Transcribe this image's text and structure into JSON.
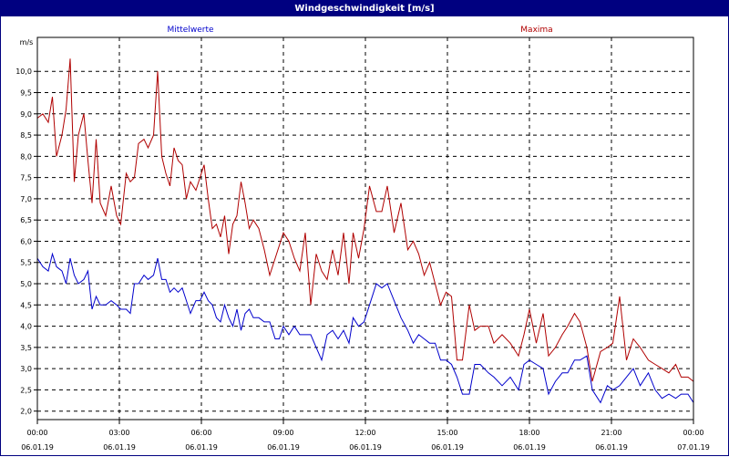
{
  "window": {
    "title": "Windgeschwindigkeit [m/s]"
  },
  "colors": {
    "mean": "#0000cc",
    "max": "#b00000",
    "grid": "#000000",
    "titlebar": "#000080"
  },
  "chart_data": {
    "type": "line",
    "ylabel": "m/s",
    "ylim": [
      1.8,
      10.8
    ],
    "y_ticks": [
      "2,0",
      "2,5",
      "3,0",
      "3,5",
      "4,0",
      "4,5",
      "5,0",
      "5,5",
      "6,0",
      "6,5",
      "7,0",
      "7,5",
      "8,0",
      "8,5",
      "9,0",
      "9,5",
      "10,0"
    ],
    "y_tick_values": [
      2.0,
      2.5,
      3.0,
      3.5,
      4.0,
      4.5,
      5.0,
      5.5,
      6.0,
      6.5,
      7.0,
      7.5,
      8.0,
      8.5,
      9.0,
      9.5,
      10.0
    ],
    "x_ticks": [
      {
        "time": "00:00",
        "date": "06.01.19"
      },
      {
        "time": "03:00",
        "date": "06.01.19"
      },
      {
        "time": "06:00",
        "date": "06.01.19"
      },
      {
        "time": "09:00",
        "date": "06.01.19"
      },
      {
        "time": "12:00",
        "date": "06.01.19"
      },
      {
        "time": "15:00",
        "date": "06.01.19"
      },
      {
        "time": "18:00",
        "date": "06.01.19"
      },
      {
        "time": "21:00",
        "date": "06.01.19"
      },
      {
        "time": "00:00",
        "date": "07.01.19"
      }
    ],
    "x_tick_hours": [
      0,
      3,
      6,
      9,
      12,
      15,
      18,
      21,
      24
    ],
    "grid": true,
    "series": [
      {
        "name": "Mittelwerte",
        "x": [
          0,
          0.2,
          0.4,
          0.55,
          0.7,
          0.9,
          1.05,
          1.2,
          1.35,
          1.5,
          1.7,
          1.85,
          2.0,
          2.15,
          2.3,
          2.5,
          2.7,
          2.9,
          3.05,
          3.25,
          3.4,
          3.55,
          3.7,
          3.9,
          4.05,
          4.25,
          4.4,
          4.55,
          4.7,
          4.85,
          5.0,
          5.15,
          5.3,
          5.45,
          5.6,
          5.8,
          5.95,
          6.1,
          6.25,
          6.4,
          6.55,
          6.7,
          6.85,
          7.0,
          7.15,
          7.3,
          7.45,
          7.6,
          7.75,
          7.9,
          8.1,
          8.3,
          8.5,
          8.7,
          8.85,
          9.0,
          9.2,
          9.4,
          9.6,
          9.8,
          10.0,
          10.2,
          10.4,
          10.6,
          10.8,
          11.0,
          11.2,
          11.4,
          11.55,
          11.75,
          11.95,
          12.15,
          12.4,
          12.6,
          12.8,
          13.05,
          13.3,
          13.55,
          13.75,
          13.95,
          14.15,
          14.35,
          14.55,
          14.75,
          14.95,
          15.15,
          15.35,
          15.55,
          15.8,
          16.0,
          16.2,
          16.5,
          16.7,
          17.0,
          17.3,
          17.6,
          17.8,
          18.0,
          18.25,
          18.5,
          18.7,
          18.95,
          19.2,
          19.4,
          19.65,
          19.85,
          20.1,
          20.3,
          20.6,
          20.85,
          21.05,
          21.3,
          21.55,
          21.8,
          22.05,
          22.35,
          22.6,
          22.85,
          23.1,
          23.35,
          23.55,
          23.8,
          24.0
        ],
        "values": [
          5.6,
          5.4,
          5.3,
          5.7,
          5.4,
          5.3,
          5.0,
          5.6,
          5.2,
          5.0,
          5.1,
          5.3,
          4.4,
          4.7,
          4.5,
          4.5,
          4.6,
          4.5,
          4.4,
          4.4,
          4.3,
          5.0,
          5.0,
          5.2,
          5.1,
          5.2,
          5.6,
          5.1,
          5.1,
          4.8,
          4.9,
          4.8,
          4.9,
          4.6,
          4.3,
          4.6,
          4.6,
          4.8,
          4.6,
          4.5,
          4.2,
          4.1,
          4.5,
          4.2,
          4.0,
          4.4,
          3.9,
          4.3,
          4.4,
          4.2,
          4.2,
          4.1,
          4.1,
          3.7,
          3.7,
          4.0,
          3.8,
          4.0,
          3.8,
          3.8,
          3.8,
          3.5,
          3.2,
          3.8,
          3.9,
          3.7,
          3.9,
          3.6,
          4.2,
          4.0,
          4.1,
          4.5,
          5.0,
          4.9,
          5.0,
          4.6,
          4.2,
          3.9,
          3.6,
          3.8,
          3.7,
          3.6,
          3.6,
          3.2,
          3.2,
          3.1,
          2.8,
          2.4,
          2.4,
          3.1,
          3.1,
          2.9,
          2.8,
          2.6,
          2.8,
          2.5,
          3.1,
          3.2,
          3.1,
          3.0,
          2.4,
          2.7,
          2.9,
          2.9,
          3.2,
          3.2,
          3.3,
          2.5,
          2.2,
          2.6,
          2.5,
          2.6,
          2.8,
          3.0,
          2.6,
          2.9,
          2.5,
          2.3,
          2.4,
          2.3,
          2.4,
          2.4,
          2.2
        ]
      },
      {
        "name": "Maxima",
        "x": [
          0,
          0.2,
          0.4,
          0.55,
          0.7,
          0.9,
          1.05,
          1.2,
          1.35,
          1.5,
          1.7,
          1.85,
          2.0,
          2.15,
          2.3,
          2.5,
          2.7,
          2.9,
          3.05,
          3.25,
          3.4,
          3.55,
          3.7,
          3.9,
          4.05,
          4.25,
          4.4,
          4.55,
          4.7,
          4.85,
          5.0,
          5.15,
          5.3,
          5.45,
          5.6,
          5.8,
          5.95,
          6.1,
          6.25,
          6.4,
          6.55,
          6.7,
          6.85,
          7.0,
          7.15,
          7.3,
          7.45,
          7.6,
          7.75,
          7.9,
          8.1,
          8.3,
          8.5,
          8.7,
          8.85,
          9.0,
          9.2,
          9.4,
          9.6,
          9.8,
          10.0,
          10.2,
          10.4,
          10.6,
          10.8,
          11.0,
          11.2,
          11.4,
          11.55,
          11.75,
          11.95,
          12.15,
          12.4,
          12.6,
          12.8,
          13.05,
          13.3,
          13.55,
          13.75,
          13.95,
          14.15,
          14.35,
          14.55,
          14.75,
          14.95,
          15.15,
          15.35,
          15.55,
          15.8,
          16.0,
          16.2,
          16.5,
          16.7,
          17.0,
          17.3,
          17.6,
          17.8,
          18.0,
          18.25,
          18.5,
          18.7,
          18.95,
          19.2,
          19.4,
          19.65,
          19.85,
          20.1,
          20.3,
          20.6,
          20.85,
          21.05,
          21.3,
          21.55,
          21.8,
          22.05,
          22.35,
          22.6,
          22.85,
          23.1,
          23.35,
          23.55,
          23.8,
          24.0
        ],
        "values": [
          8.9,
          9.0,
          8.8,
          9.4,
          8.0,
          8.5,
          9.1,
          10.3,
          7.4,
          8.5,
          9.0,
          7.9,
          6.9,
          8.4,
          6.9,
          6.6,
          7.3,
          6.6,
          6.4,
          7.6,
          7.4,
          7.5,
          8.3,
          8.4,
          8.2,
          8.5,
          10.0,
          8.0,
          7.6,
          7.3,
          8.2,
          7.9,
          7.8,
          7.0,
          7.4,
          7.2,
          7.5,
          7.8,
          7.0,
          6.3,
          6.4,
          6.1,
          6.6,
          5.7,
          6.4,
          6.6,
          7.4,
          6.9,
          6.3,
          6.5,
          6.3,
          5.8,
          5.2,
          5.6,
          5.9,
          6.2,
          6.0,
          5.6,
          5.3,
          6.2,
          4.5,
          5.7,
          5.3,
          5.1,
          5.8,
          5.2,
          6.2,
          5.0,
          6.2,
          5.6,
          6.3,
          7.3,
          6.7,
          6.7,
          7.3,
          6.2,
          6.9,
          5.8,
          6.0,
          5.7,
          5.2,
          5.5,
          5.0,
          4.5,
          4.8,
          4.7,
          3.2,
          3.2,
          4.5,
          3.9,
          4.0,
          4.0,
          3.6,
          3.8,
          3.6,
          3.3,
          3.8,
          4.4,
          3.6,
          4.3,
          3.3,
          3.5,
          3.8,
          4.0,
          4.3,
          4.1,
          3.5,
          2.7,
          3.4,
          3.5,
          3.6,
          4.7,
          3.2,
          3.7,
          3.5,
          3.2,
          3.1,
          3.0,
          2.9,
          3.1,
          2.8,
          2.8,
          2.7
        ]
      }
    ]
  }
}
